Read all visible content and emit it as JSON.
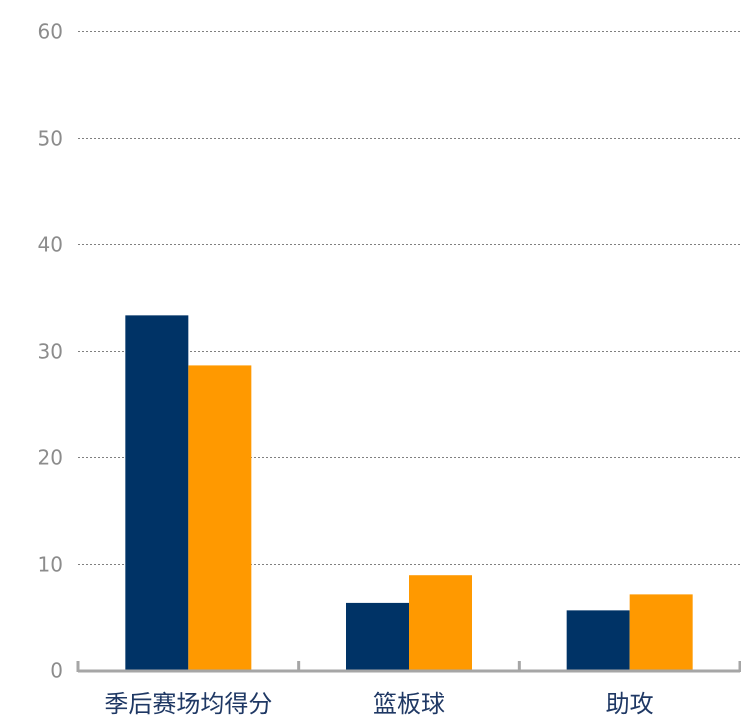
{
  "chart_data": {
    "type": "bar",
    "title": "",
    "xlabel": "",
    "ylabel": "",
    "categories": [
      "季后赛场均得分",
      "篮板球",
      "助攻"
    ],
    "series": [
      {
        "values": [
          33.3,
          6.3,
          5.6
        ],
        "color": "#003366"
      },
      {
        "values": [
          28.6,
          8.9,
          7.1
        ],
        "color": "#ff9900"
      }
    ],
    "ylim": [
      0,
      60
    ],
    "yticks": [
      0,
      10,
      20,
      30,
      40,
      50,
      60
    ],
    "grid": true,
    "legend": "none"
  },
  "colors": {
    "axis": "#a6a6a6",
    "grid": "#808080",
    "tick_label": "#8c8c8c",
    "category_label": "#1f3864"
  }
}
